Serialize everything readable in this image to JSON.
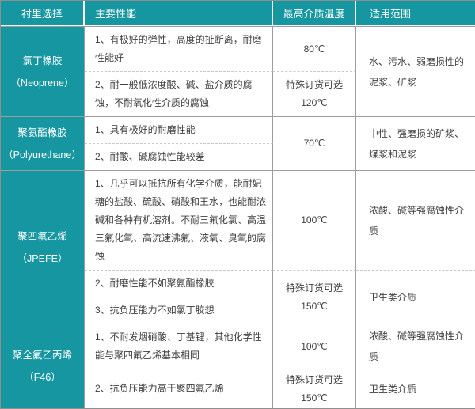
{
  "colors": {
    "accent_teal": "#1596a0",
    "border_gray": "#9d9d9d",
    "dashed_gray": "#c9c9c9",
    "body_text": "#3f3f3f",
    "header_text": "#ffffff"
  },
  "table": {
    "headers": [
      "衬里选择",
      "主要性能",
      "最高介质温度",
      "适用范围"
    ],
    "sections": [
      {
        "material": "氯丁橡胶",
        "material_en": "（Neoprene）",
        "rows": [
          {
            "perf": "1、有极好的弹性，高度的扯断离，耐磨性能好",
            "temp": "80℃"
          },
          {
            "perf": "2、耐一般低浓度酸、碱、盐介质的腐蚀，不耐氧化性介质的腐蚀",
            "temp": "特殊订货可选\n120℃"
          }
        ],
        "range": "水、污水、弱磨损性的泥浆、矿浆"
      },
      {
        "material": "聚氨酯橡胶",
        "material_en": "（Polyurethane）",
        "rows": [
          {
            "perf": "1、具有极好的耐磨性能"
          },
          {
            "perf": "2、耐酸、碱腐蚀性能较差"
          }
        ],
        "temp": "70℃",
        "range": "中性、强磨损的矿浆、煤浆和泥浆"
      },
      {
        "material": "聚四氟乙烯",
        "material_en": "（JPEFE）",
        "rows": [
          {
            "perf": "1、几乎可以抵抗所有化学介质，能耐妃糖的盐酸、硫酸、硝酸和王水，也能耐浓碱和各种有机溶剂。不耐三氟化氯、高温三氟化氧、高流速沸氟、液氧、臭氧的腐蚀",
            "temp": "100℃",
            "range": "浓酸、碱等强腐蚀性介质"
          },
          {
            "perf": "2、耐磨性能不如聚氨酯橡胶",
            "temp": "特殊订货可选\n150℃",
            "range": "卫生类介质"
          },
          {
            "perf": "3、抗负压能力不如氯丁胶想"
          }
        ]
      },
      {
        "material": "聚全氟乙丙烯",
        "material_en": "（F46）",
        "rows": [
          {
            "perf": "1、不耐发烟硝酸、丁基锂，其他化学性能与聚四氟乙烯基本相同",
            "temp": "100℃",
            "range": "浓酸、碱等强腐蚀性介质"
          },
          {
            "perf": "2、抗负压能力高于聚四氟乙烯",
            "temp": "特殊订货可选\n150℃",
            "range": "卫生类介质"
          }
        ]
      }
    ]
  }
}
